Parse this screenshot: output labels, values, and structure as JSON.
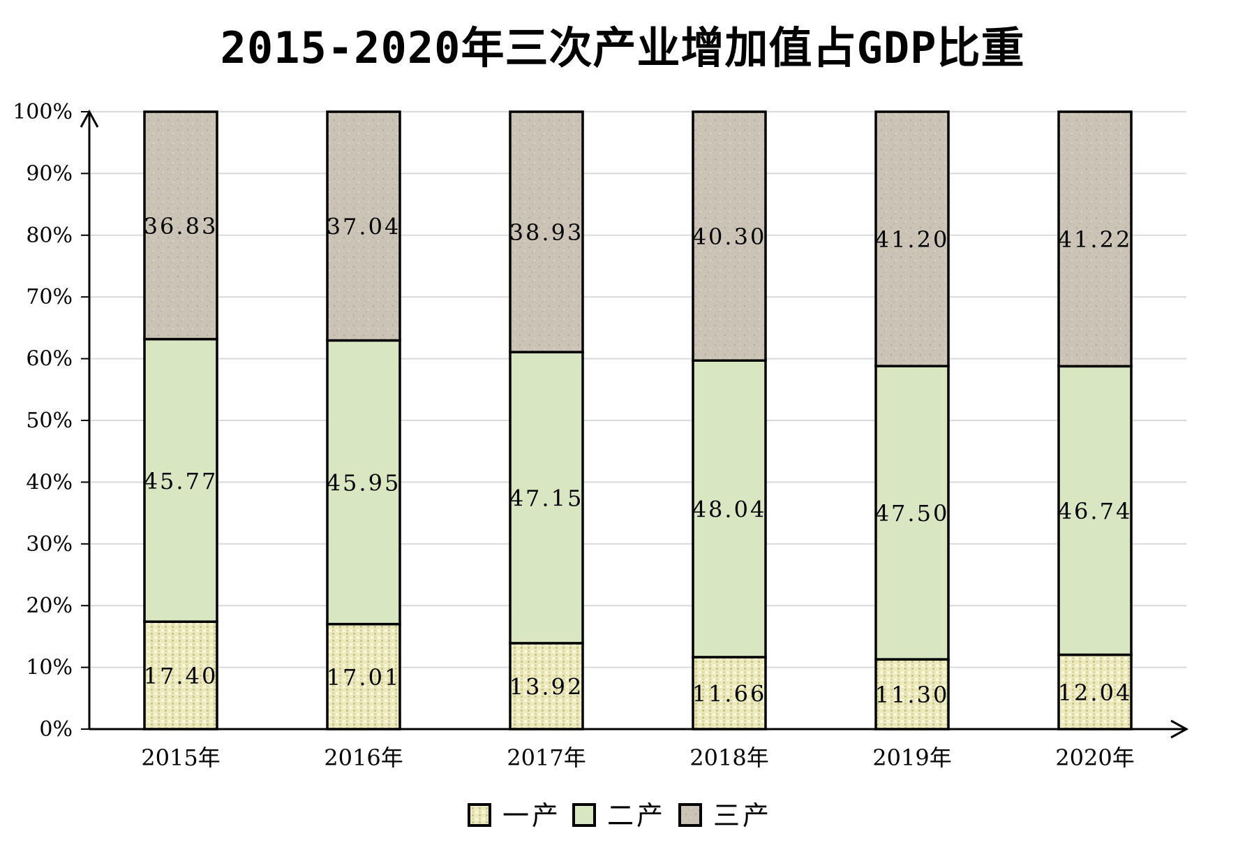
{
  "chart_data": {
    "type": "bar",
    "stacked": true,
    "percent": true,
    "title": "2015-2020年三次产业增加值占GDP比重",
    "categories": [
      "2015年",
      "2016年",
      "2017年",
      "2018年",
      "2019年",
      "2020年"
    ],
    "series": [
      {
        "name": "一产",
        "values": [
          17.4,
          17.01,
          13.92,
          11.66,
          11.3,
          12.04
        ],
        "labels": [
          "17.40",
          "17.01",
          "13.92",
          "11.66",
          "11.30",
          "12.04"
        ],
        "color": "#e9e6b5"
      },
      {
        "name": "二产",
        "values": [
          45.77,
          45.95,
          47.15,
          48.04,
          47.5,
          46.74
        ],
        "labels": [
          "45.77",
          "45.95",
          "47.15",
          "48.04",
          "47.50",
          "46.74"
        ],
        "color": "#d8e6c2"
      },
      {
        "name": "三产",
        "values": [
          36.83,
          37.04,
          38.93,
          40.3,
          41.2,
          41.22
        ],
        "labels": [
          "36.83",
          "37.04",
          "38.93",
          "40.30",
          "41.20",
          "41.22"
        ],
        "color": "#cbc4b6"
      }
    ],
    "y_ticks": [
      "0%",
      "10%",
      "20%",
      "30%",
      "40%",
      "50%",
      "60%",
      "70%",
      "80%",
      "90%",
      "100%"
    ],
    "ylim": [
      0,
      100
    ],
    "grid": true,
    "legend_position": "bottom"
  }
}
